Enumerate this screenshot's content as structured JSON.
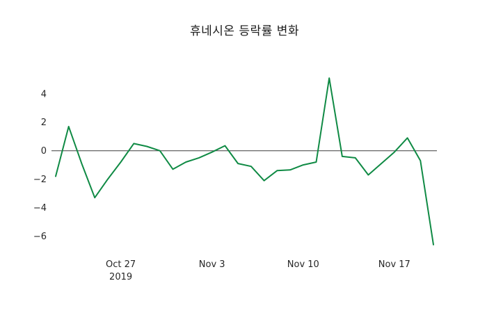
{
  "chart_data": {
    "type": "line",
    "title": "휴네시온 등락률 변화",
    "xlabel": "",
    "ylabel": "",
    "x": [
      0,
      1,
      2,
      3,
      4,
      5,
      6,
      7,
      8,
      9,
      10,
      11,
      12,
      13,
      14,
      15,
      16,
      17,
      18,
      19,
      20,
      21,
      22,
      23,
      24,
      25,
      26,
      27,
      28,
      29
    ],
    "values": [
      -1.8,
      1.7,
      -0.9,
      -3.3,
      -2.0,
      -0.8,
      0.5,
      0.3,
      0.0,
      -1.3,
      -0.8,
      -0.5,
      -0.1,
      0.35,
      -0.9,
      -1.1,
      -2.1,
      -1.4,
      -1.35,
      -1.0,
      -0.8,
      5.1,
      -0.4,
      -0.5,
      -1.7,
      -0.9,
      -0.1,
      0.9,
      -0.7,
      -6.6
    ],
    "x_ticks": [
      {
        "index": 5,
        "label": "Oct 27",
        "sublabel": "2019"
      },
      {
        "index": 12,
        "label": "Nov 3",
        "sublabel": ""
      },
      {
        "index": 19,
        "label": "Nov 10",
        "sublabel": ""
      },
      {
        "index": 26,
        "label": "Nov 17",
        "sublabel": ""
      }
    ],
    "y_ticks": [
      4,
      2,
      0,
      -2,
      -4,
      -6
    ],
    "ylim": [
      -7.1,
      5.7
    ],
    "line_color": "#0f8a44",
    "line_width": 2,
    "zero_line": {
      "show": true,
      "color": "#3d3d3d"
    },
    "grid": false,
    "legend": "none",
    "background": "#ffffff"
  }
}
